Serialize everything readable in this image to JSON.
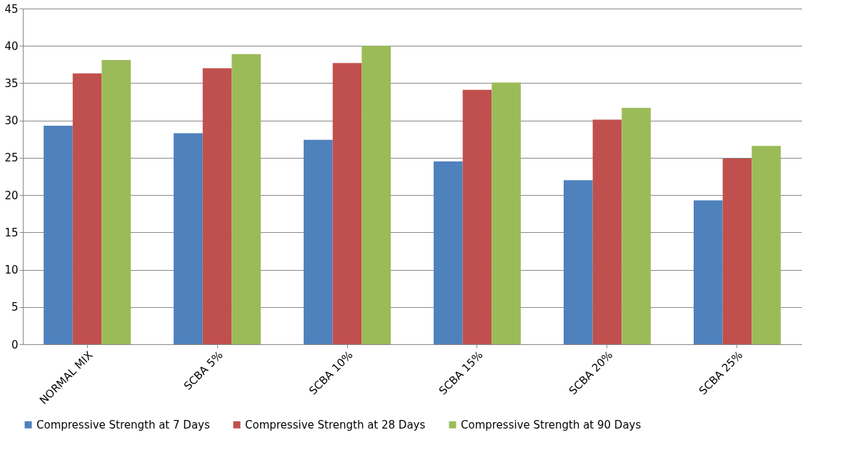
{
  "chart_data": {
    "type": "bar",
    "categories": [
      "NORMAL MIX",
      "SCBA 5%",
      "SCBA 10%",
      "SCBA 15%",
      "SCBA 20%",
      "SCBA 25%"
    ],
    "series": [
      {
        "name": "Compressive Strength at 7 Days",
        "color": "#4f81bd",
        "values": [
          29.3,
          28.3,
          27.4,
          24.5,
          22.0,
          19.3
        ]
      },
      {
        "name": "Compressive Strength at 28 Days",
        "color": "#c0504d",
        "values": [
          36.3,
          37.0,
          37.7,
          34.1,
          30.1,
          24.9
        ]
      },
      {
        "name": "Compressive Strength at 90 Days",
        "color": "#9bbb59",
        "values": [
          38.1,
          38.9,
          40.0,
          35.1,
          31.7,
          26.6
        ]
      }
    ],
    "ylim": [
      0,
      45
    ],
    "yticks": [
      0,
      5,
      10,
      15,
      20,
      25,
      30,
      35,
      40,
      45
    ],
    "grid": "y",
    "legend": "bottom"
  }
}
